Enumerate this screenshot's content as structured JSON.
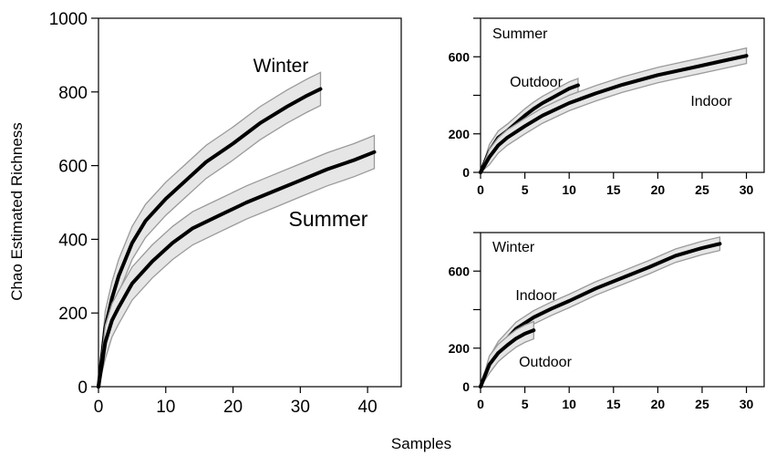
{
  "xlabel": "Samples",
  "chart_data": [
    {
      "type": "line",
      "title": "",
      "ylabel": "Chao Estimated Richness",
      "xlabel": "",
      "xlim": [
        0,
        45
      ],
      "ylim": [
        0,
        1000
      ],
      "xticks": [
        "0",
        "10",
        "20",
        "30",
        "40"
      ],
      "yticks": [
        "0",
        "200",
        "400",
        "600",
        "800",
        "1000"
      ],
      "series": [
        {
          "name": "Winter",
          "x": [
            0,
            1,
            2,
            3,
            5,
            7,
            10,
            13,
            16,
            20,
            24,
            28,
            31,
            33
          ],
          "y": [
            0,
            160,
            240,
            300,
            390,
            450,
            510,
            560,
            610,
            660,
            715,
            760,
            790,
            808
          ],
          "band": 45
        },
        {
          "name": "Summer",
          "x": [
            0,
            1,
            2,
            3,
            5,
            8,
            11,
            14,
            18,
            22,
            26,
            30,
            34,
            38,
            41
          ],
          "y": [
            0,
            120,
            180,
            215,
            280,
            340,
            390,
            430,
            465,
            500,
            530,
            560,
            590,
            615,
            637
          ],
          "band": 45
        }
      ]
    },
    {
      "type": "line",
      "title": "Summer",
      "xlim": [
        0,
        32
      ],
      "ylim": [
        0,
        800
      ],
      "xticks": [
        "0",
        "5",
        "10",
        "15",
        "20",
        "25",
        "30"
      ],
      "yticks": [
        "0",
        "200",
        "600"
      ],
      "series": [
        {
          "name": "Outdoor",
          "x": [
            0,
            1,
            2,
            3,
            4,
            5,
            6,
            7,
            8,
            9,
            10,
            11
          ],
          "y": [
            0,
            110,
            180,
            215,
            255,
            295,
            330,
            360,
            385,
            410,
            435,
            452
          ],
          "band": 35
        },
        {
          "name": "Indoor",
          "x": [
            0,
            1,
            2,
            3,
            5,
            7,
            10,
            13,
            16,
            20,
            24,
            27,
            30
          ],
          "y": [
            0,
            80,
            140,
            180,
            240,
            295,
            360,
            410,
            455,
            505,
            545,
            575,
            605
          ],
          "band": 40
        }
      ]
    },
    {
      "type": "line",
      "title": "Winter",
      "xlim": [
        0,
        32
      ],
      "ylim": [
        0,
        800
      ],
      "xticks": [
        "0",
        "5",
        "10",
        "15",
        "20",
        "25",
        "30"
      ],
      "yticks": [
        "0",
        "200",
        "600"
      ],
      "series": [
        {
          "name": "Indoor",
          "x": [
            0,
            1,
            2,
            3,
            4,
            6,
            8,
            10,
            13,
            16,
            19,
            22,
            25,
            27
          ],
          "y": [
            0,
            120,
            200,
            250,
            300,
            360,
            405,
            445,
            510,
            565,
            620,
            680,
            720,
            742
          ],
          "band": 35
        },
        {
          "name": "Outdoor",
          "x": [
            0,
            1,
            2,
            3,
            4,
            5,
            6
          ],
          "y": [
            0,
            115,
            175,
            215,
            250,
            275,
            293
          ],
          "band": 45
        }
      ]
    }
  ]
}
